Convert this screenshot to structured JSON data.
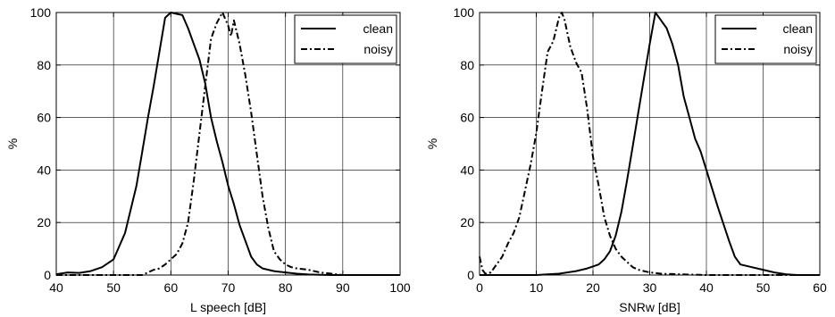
{
  "chart_data": [
    {
      "type": "line",
      "xlabel": "L speech [dB]",
      "ylabel": "%",
      "xlim": [
        40,
        100
      ],
      "ylim": [
        0,
        100
      ],
      "xticks": [
        40,
        50,
        60,
        70,
        80,
        90,
        100
      ],
      "yticks": [
        0,
        20,
        40,
        60,
        80,
        100
      ],
      "grid": true,
      "legend_position": "top-right",
      "series": [
        {
          "name": "clean",
          "style": "solid",
          "x": [
            40,
            42,
            44,
            46,
            48,
            50,
            52,
            54,
            55,
            56,
            57,
            58,
            59,
            60,
            61,
            62,
            63,
            64,
            65,
            66,
            67,
            68,
            69,
            70,
            71,
            72,
            73,
            74,
            75,
            76,
            78,
            80,
            82,
            84,
            86,
            88,
            90,
            95,
            100
          ],
          "y": [
            0.3,
            1,
            0.8,
            1.5,
            3,
            6,
            16,
            34,
            47,
            60,
            72,
            85,
            98,
            100,
            99.5,
            99,
            94,
            88,
            82,
            73,
            60,
            51,
            43,
            34,
            27,
            19,
            13,
            7,
            4,
            2.5,
            1.5,
            1,
            0.5,
            0.2,
            0.1,
            0,
            0,
            0,
            0
          ]
        },
        {
          "name": "noisy",
          "style": "dashdot",
          "x": [
            40,
            50,
            55,
            56,
            57,
            58,
            59,
            60,
            61,
            62,
            63,
            64,
            65,
            66,
            67,
            68,
            69,
            70,
            70.5,
            71,
            72,
            73,
            74,
            75,
            76,
            77,
            78,
            79,
            80,
            81,
            82,
            84,
            86,
            88,
            90,
            95,
            100
          ],
          "y": [
            0,
            0,
            0,
            1,
            2,
            2.5,
            4,
            6,
            8,
            12,
            20,
            36,
            54,
            72,
            90,
            96,
            100,
            95,
            91,
            97,
            88,
            76,
            62,
            46,
            30,
            18,
            9,
            6,
            4,
            3,
            2.5,
            2,
            1,
            0.5,
            0,
            0,
            0
          ]
        }
      ]
    },
    {
      "type": "line",
      "xlabel": "SNRw [dB]",
      "ylabel": "%",
      "xlim": [
        0,
        60
      ],
      "ylim": [
        0,
        100
      ],
      "xticks": [
        0,
        10,
        20,
        30,
        40,
        50,
        60
      ],
      "yticks": [
        0,
        20,
        40,
        60,
        80,
        100
      ],
      "grid": true,
      "legend_position": "top-right",
      "series": [
        {
          "name": "clean",
          "style": "solid",
          "x": [
            0,
            10,
            14,
            17,
            19,
            21,
            22,
            23,
            24,
            25,
            26,
            27,
            28,
            29,
            30,
            31,
            32,
            33,
            34,
            35,
            36,
            37,
            38,
            39,
            40,
            42,
            44,
            45,
            46,
            47,
            48,
            50,
            52,
            54,
            56,
            60
          ],
          "y": [
            0,
            0,
            0.5,
            1.5,
            2.5,
            4,
            6,
            9,
            15,
            24,
            36,
            49,
            62,
            75,
            88,
            100,
            97,
            94,
            88,
            80,
            68,
            60,
            52,
            47,
            40,
            26,
            13,
            7,
            4,
            3.5,
            3,
            2,
            1,
            0.3,
            0,
            0
          ]
        },
        {
          "name": "noisy",
          "style": "dashdot",
          "x": [
            0,
            0.5,
            1,
            2,
            3,
            4,
            5,
            6,
            7,
            8,
            9,
            10,
            11,
            12,
            13,
            14,
            14.5,
            15,
            16,
            17,
            18,
            19,
            20,
            21,
            22,
            23,
            24,
            25,
            26,
            27,
            28,
            29,
            30,
            32,
            35,
            40,
            60
          ],
          "y": [
            7,
            2,
            0.5,
            1,
            4,
            7,
            12,
            16,
            22,
            32,
            42,
            54,
            70,
            85,
            89,
            98,
            100,
            97,
            87,
            81,
            77,
            63,
            45,
            34,
            22,
            15,
            10,
            7,
            5,
            3,
            2,
            1.5,
            1,
            0.5,
            0.3,
            0,
            0
          ]
        }
      ]
    }
  ]
}
